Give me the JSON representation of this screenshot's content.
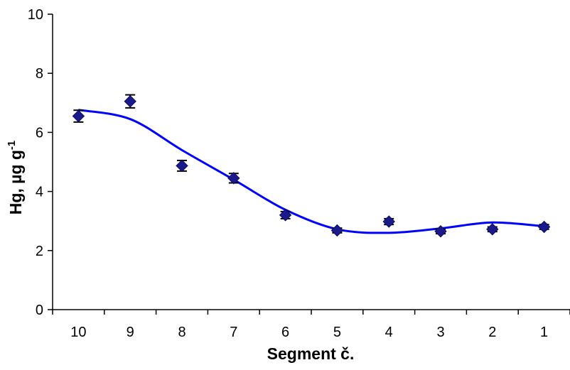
{
  "chart_data": {
    "type": "scatter",
    "xlabel": "Segment č.",
    "ylabel_main": "Hg, µg g",
    "ylabel_sup": "-1",
    "categories": [
      "10",
      "9",
      "8",
      "7",
      "6",
      "5",
      "4",
      "3",
      "2",
      "1"
    ],
    "yticks": [
      "0",
      "2",
      "4",
      "6",
      "8",
      "10"
    ],
    "ylim": [
      0,
      10
    ],
    "grid": false,
    "legend": "none",
    "series": [
      {
        "values": [
          6.55,
          7.05,
          4.87,
          4.45,
          3.2,
          2.68,
          2.98,
          2.65,
          2.72,
          2.8
        ],
        "errors": [
          0.2,
          0.22,
          0.18,
          0.16,
          0.12,
          0.08,
          0.1,
          0.08,
          0.08,
          0.08
        ],
        "marker_color": "#1a1a8c"
      }
    ],
    "trendline": {
      "color": "#0000ff",
      "values": [
        6.76,
        6.45,
        5.4,
        4.4,
        3.38,
        2.72,
        2.6,
        2.75,
        2.95,
        2.82
      ]
    }
  }
}
